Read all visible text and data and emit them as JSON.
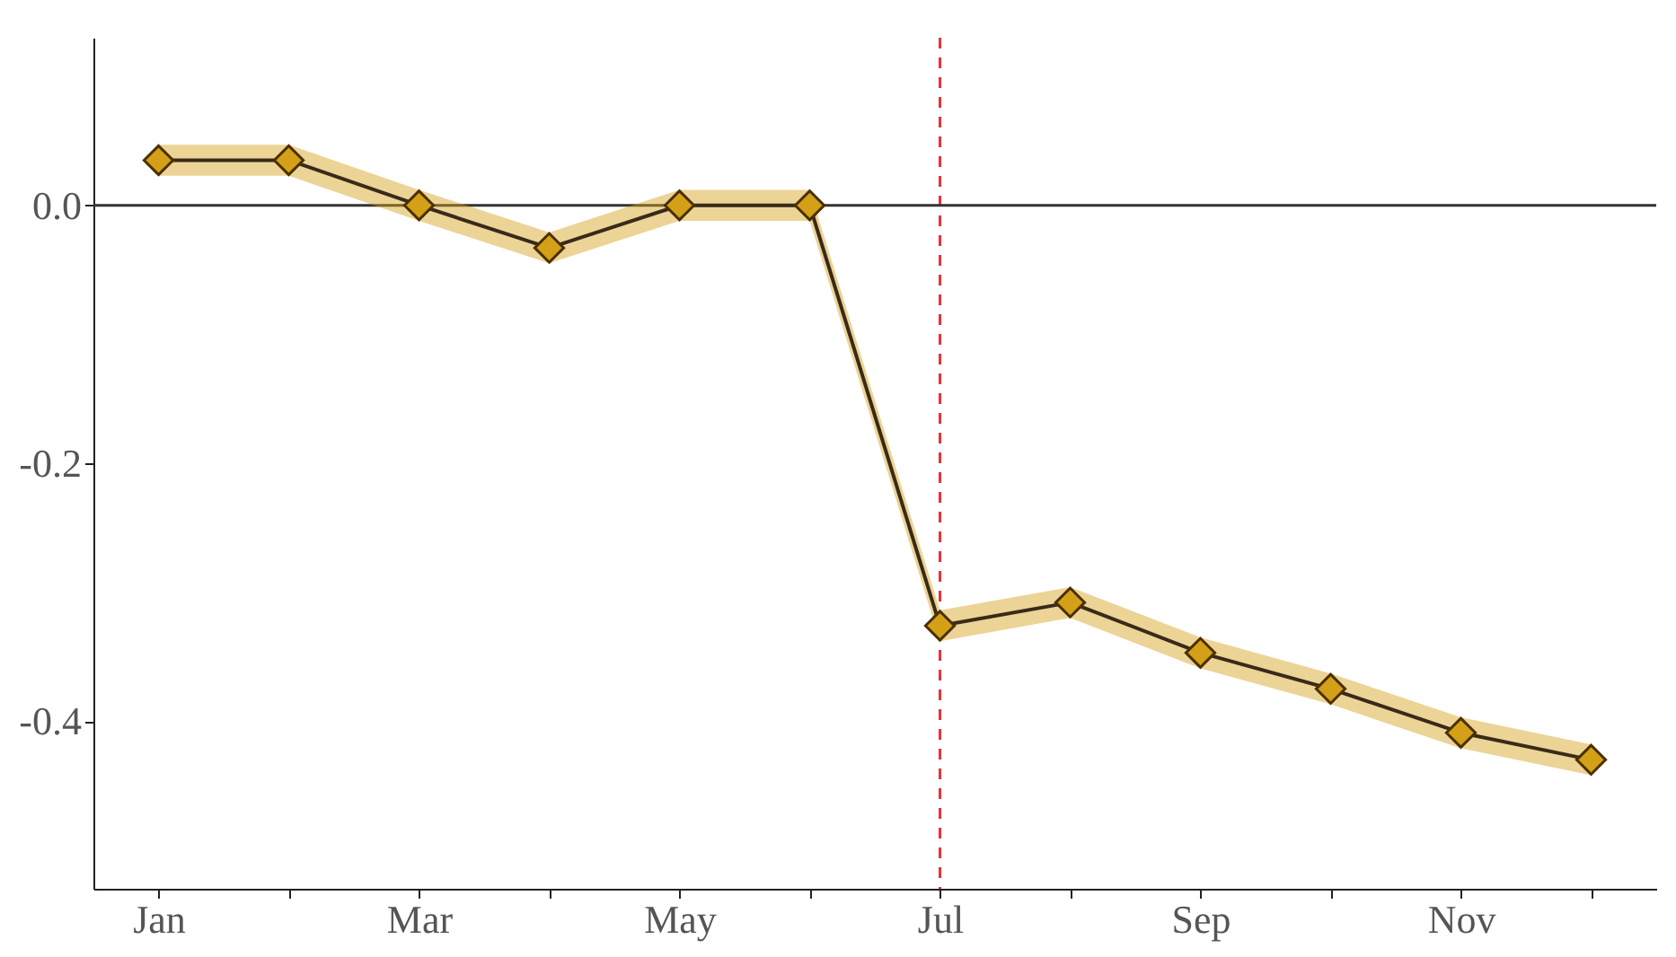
{
  "chart_data": {
    "type": "line",
    "categories": [
      "Jan",
      null,
      "Mar",
      null,
      "May",
      null,
      "Jul",
      null,
      "Sep",
      null,
      "Nov",
      null
    ],
    "series": [
      {
        "color": "#d4a017",
        "values": [
          0.035,
          0.035,
          0.0,
          -0.033,
          0.0,
          0.0,
          -0.326,
          -0.308,
          -0.347,
          -0.375,
          -0.409,
          -0.43
        ],
        "lower": [
          0.023,
          0.023,
          -0.012,
          -0.045,
          -0.012,
          -0.012,
          -0.338,
          -0.32,
          -0.359,
          -0.387,
          -0.421,
          -0.442
        ],
        "upper": [
          0.047,
          0.047,
          0.012,
          -0.021,
          0.012,
          0.012,
          -0.314,
          -0.296,
          -0.335,
          -0.363,
          -0.397,
          -0.418
        ]
      }
    ],
    "ylim": [
      -0.53,
      0.13
    ],
    "yticks": [
      {
        "value": 0,
        "label": "0.0"
      },
      {
        "value": -0.2,
        "label": "-0.2"
      },
      {
        "value": -0.4,
        "label": "-0.4"
      }
    ],
    "marker": "diamond",
    "line_style": "solid",
    "grid": false,
    "ref_lines": [
      {
        "axis": "y",
        "value": 0,
        "color": "#333333",
        "line_style": "solid"
      },
      {
        "axis": "x",
        "value": "Jul",
        "color": "#e8333a",
        "line_style": "dashed"
      }
    ]
  }
}
